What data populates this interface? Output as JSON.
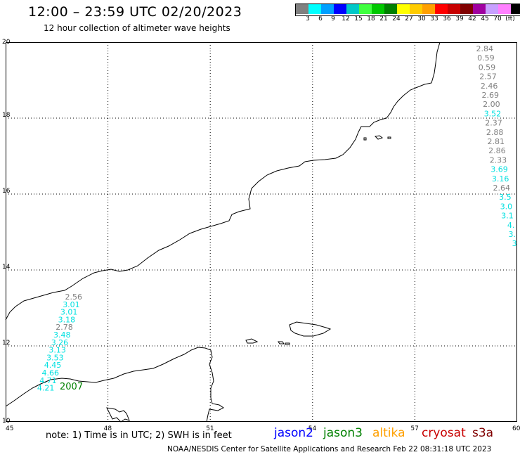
{
  "header": {
    "title": "12:00 – 23:59 UTC 02/20/2023",
    "subtitle": "12 hour collection of altimeter wave heights"
  },
  "scale": {
    "colors": [
      "#808080",
      "#00ffff",
      "#00a0ff",
      "#0000ff",
      "#00c8c8",
      "#40ff40",
      "#00c800",
      "#008000",
      "#ffff00",
      "#ffcc00",
      "#ffa000",
      "#ff0000",
      "#c80000",
      "#800000",
      "#a000a0",
      "#c8a0ff",
      "#ff80ff",
      "#000000"
    ],
    "labels": [
      "3",
      "6",
      "9",
      "12",
      "15",
      "18",
      "21",
      "24",
      "27",
      "30",
      "33",
      "36",
      "39",
      "42",
      "45",
      "70",
      "(ft)"
    ]
  },
  "map": {
    "x_ticks": [
      "45",
      "48",
      "51",
      "54",
      "57",
      "60"
    ],
    "y_ticks": [
      "10",
      "12",
      "14",
      "16",
      "18",
      "20"
    ],
    "coast_color": "#000000",
    "grid_color": "#000000"
  },
  "track_east": [
    {
      "v": "2.84",
      "c": "#808080"
    },
    {
      "v": "0.59",
      "c": "#808080"
    },
    {
      "v": "0.59",
      "c": "#808080"
    },
    {
      "v": "2.57",
      "c": "#808080"
    },
    {
      "v": "2.46",
      "c": "#808080"
    },
    {
      "v": "2.69",
      "c": "#808080"
    },
    {
      "v": "2.00",
      "c": "#808080"
    },
    {
      "v": "3.52",
      "c": "#00e0e0"
    },
    {
      "v": "2.37",
      "c": "#808080"
    },
    {
      "v": "2.88",
      "c": "#808080"
    },
    {
      "v": "2.81",
      "c": "#808080"
    },
    {
      "v": "2.86",
      "c": "#808080"
    },
    {
      "v": "2.33",
      "c": "#808080"
    },
    {
      "v": "3.69",
      "c": "#00e0e0"
    },
    {
      "v": "3.16",
      "c": "#00e0e0"
    },
    {
      "v": "2.64",
      "c": "#808080"
    },
    {
      "v": "3.5",
      "c": "#00e0e0"
    },
    {
      "v": "3.0",
      "c": "#00e0e0"
    },
    {
      "v": "3.1",
      "c": "#00e0e0"
    },
    {
      "v": "4.",
      "c": "#00e0e0"
    },
    {
      "v": "3.",
      "c": "#00e0e0"
    },
    {
      "v": "3",
      "c": "#00e0e0"
    }
  ],
  "track_west": [
    {
      "v": "2.56",
      "c": "#808080"
    },
    {
      "v": "3.01",
      "c": "#00e0e0"
    },
    {
      "v": "3.01",
      "c": "#00e0e0"
    },
    {
      "v": "3.18",
      "c": "#00e0e0"
    },
    {
      "v": "2.78",
      "c": "#808080"
    },
    {
      "v": "3.48",
      "c": "#00e0e0"
    },
    {
      "v": "3.26",
      "c": "#00e0e0"
    },
    {
      "v": "3.13",
      "c": "#00e0e0"
    },
    {
      "v": "3.53",
      "c": "#00e0e0"
    },
    {
      "v": "4.45",
      "c": "#00e0e0"
    },
    {
      "v": "4.66",
      "c": "#00e0e0"
    },
    {
      "v": "4.71",
      "c": "#00e0e0"
    },
    {
      "v": "4.21",
      "c": "#00e0e0"
    }
  ],
  "time_label": {
    "text": "2007",
    "color": "#008000"
  },
  "footer": {
    "note": "note:  1) Time is in UTC;  2) SWH is in feet",
    "legend": [
      {
        "name": "jason2",
        "color": "#0000ff"
      },
      {
        "name": "jason3",
        "color": "#008000"
      },
      {
        "name": "altika",
        "color": "#ffa000"
      },
      {
        "name": "cryosat",
        "color": "#c80000"
      },
      {
        "name": "s3a",
        "color": "#800000"
      }
    ],
    "credit": "NOAA/NESDIS Center for Satellite Applications and Research     Feb 22 08:31:18 UTC 2023"
  }
}
